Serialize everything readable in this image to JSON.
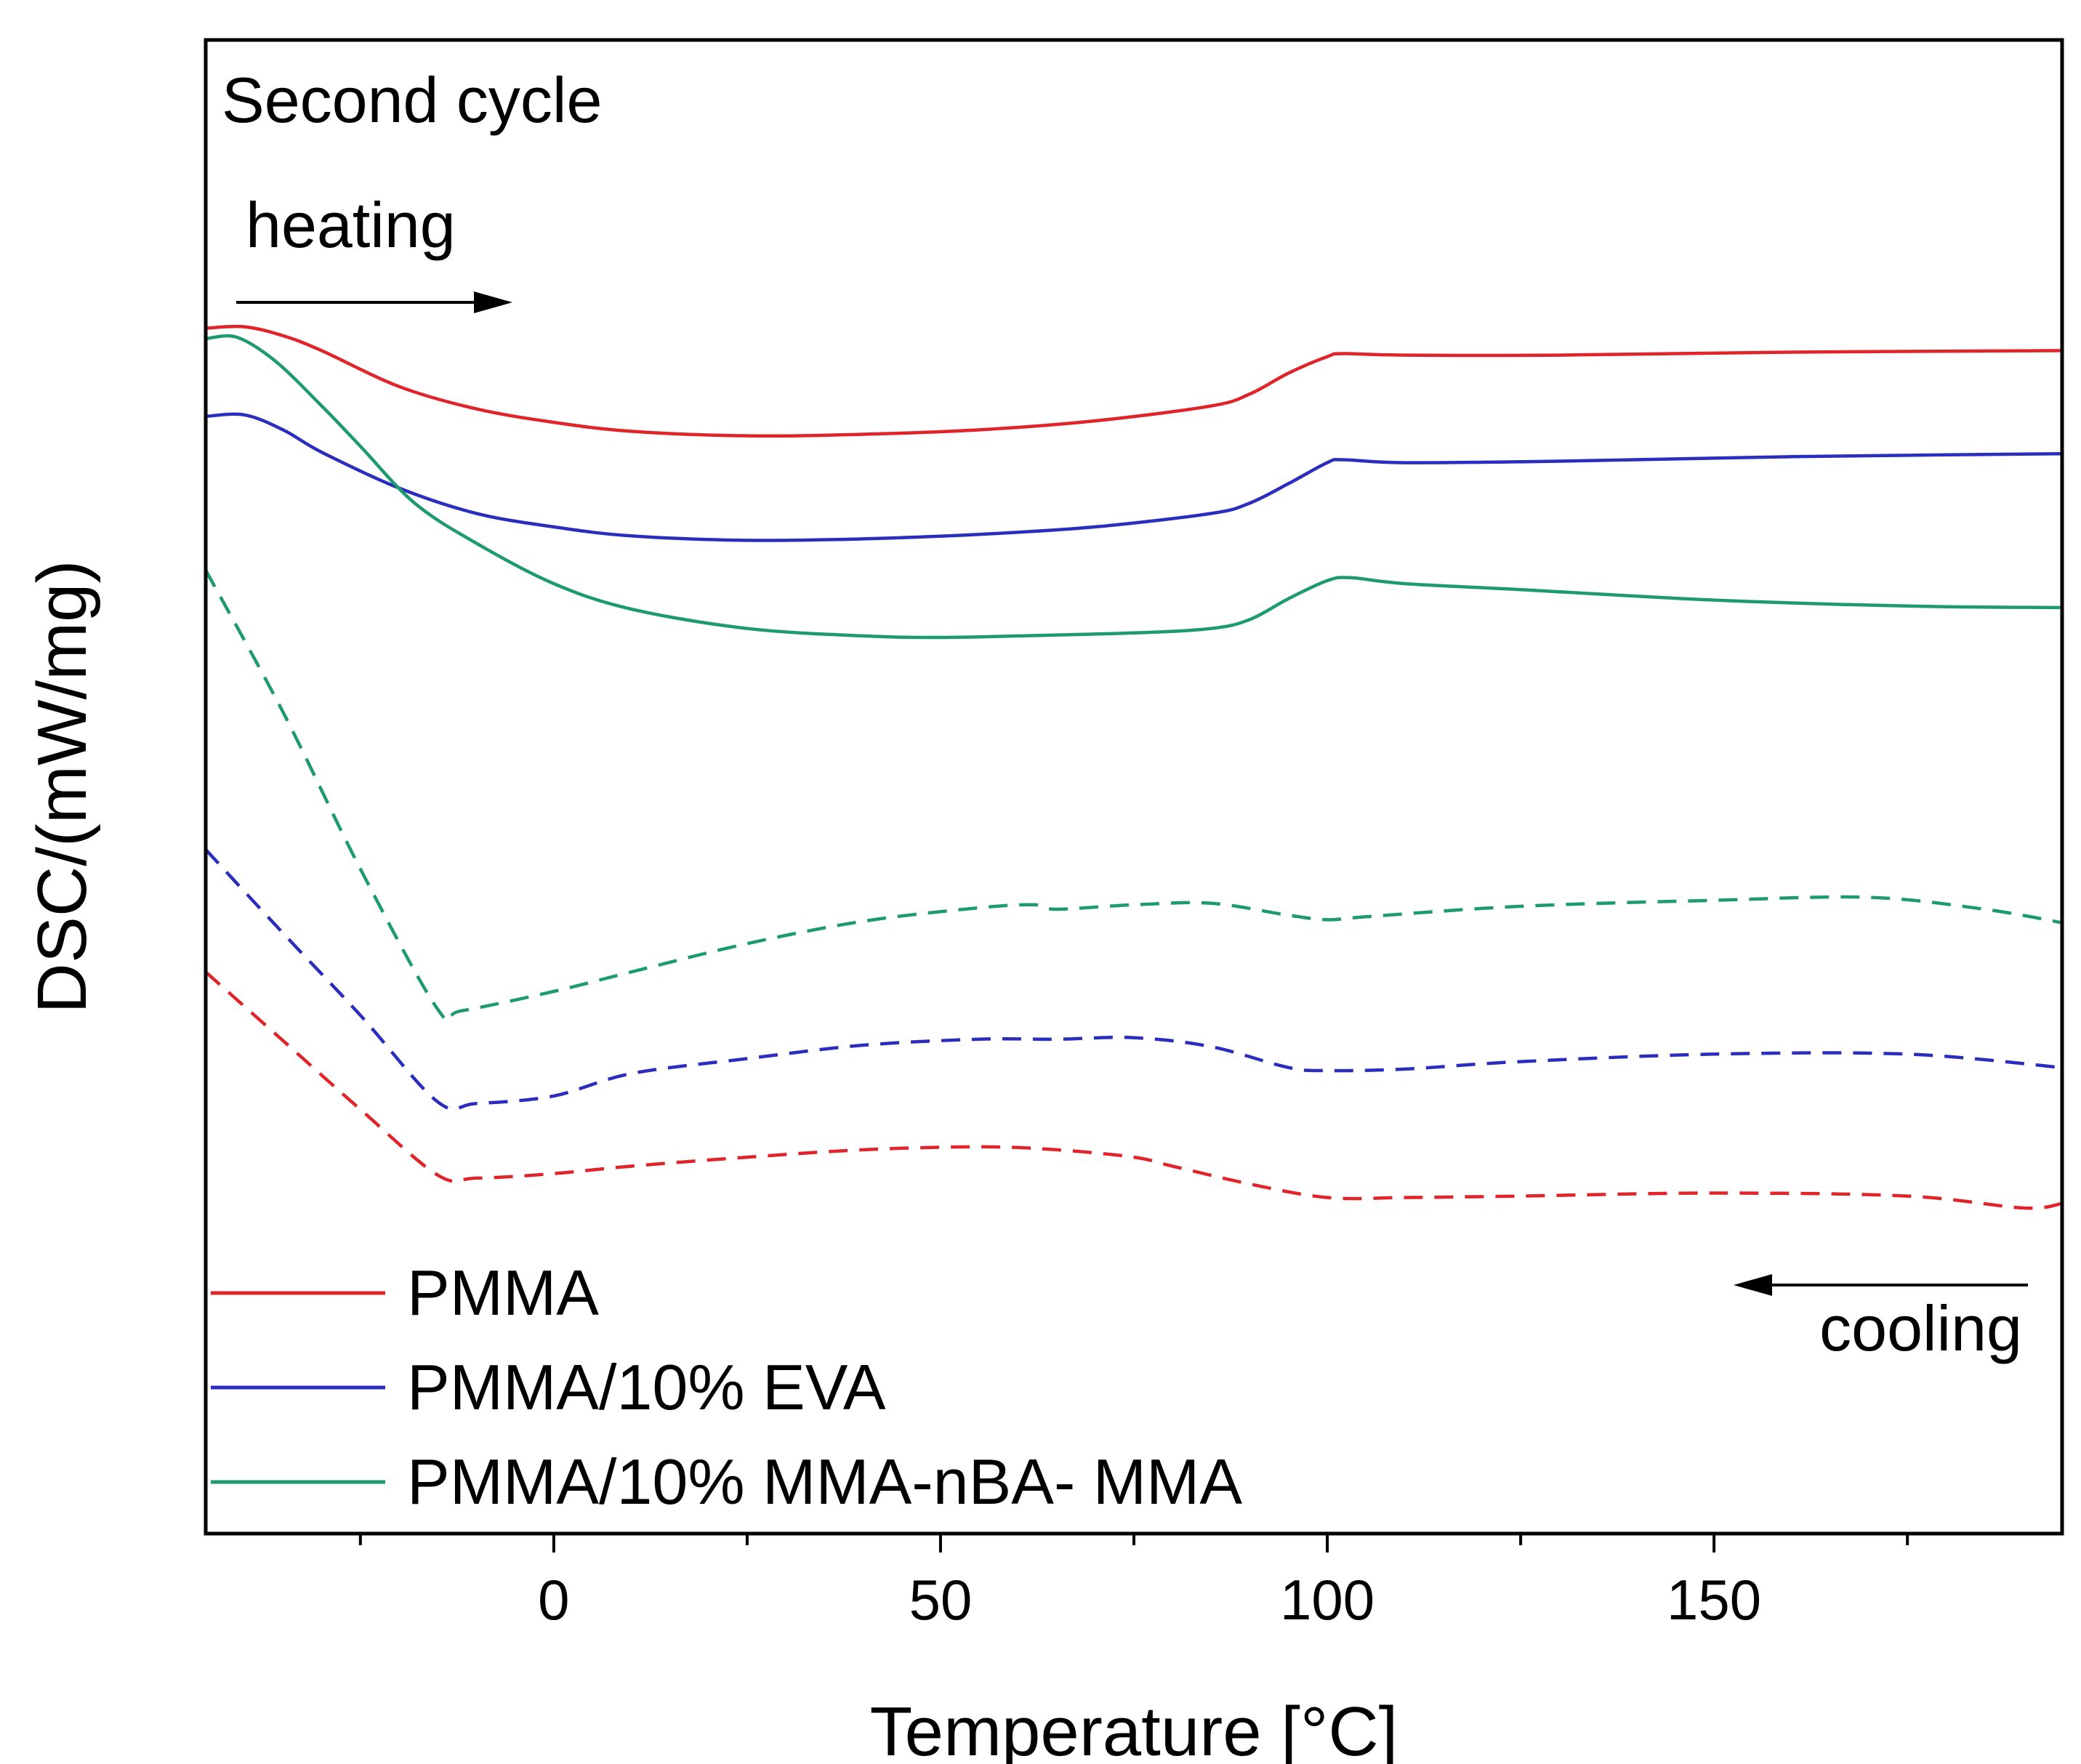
{
  "chart_data": {
    "type": "line",
    "annotations": {
      "panel_label": "Second cycle",
      "heating_label": "heating",
      "cooling_label": "cooling"
    },
    "xlabel": "Temperature [°C]",
    "ylabel": "DSC/(mW/mg)",
    "xlim": [
      -45,
      195
    ],
    "ylim": [
      0,
      100
    ],
    "y_ticks_shown": false,
    "x_ticks": [
      {
        "value": 0,
        "label": "0"
      },
      {
        "value": 50,
        "label": "50"
      },
      {
        "value": 100,
        "label": "100"
      },
      {
        "value": 150,
        "label": "150"
      }
    ],
    "x_minor_ticks": [
      -25,
      25,
      75,
      125,
      175
    ],
    "legend_position": "bottom-left",
    "series": [
      {
        "name": "PMMA",
        "label": "PMMA",
        "color": "#e0252a",
        "style": "solid",
        "segment": "heating",
        "x": [
          -45,
          -40,
          -35,
          -30,
          -20,
          -10,
          0,
          10,
          25,
          40,
          55,
          70,
          85,
          90,
          95,
          100,
          102,
          110,
          130,
          160,
          195
        ],
        "y": [
          80.7,
          80.8,
          80.2,
          79.2,
          76.8,
          75.3,
          74.4,
          73.8,
          73.5,
          73.6,
          73.9,
          74.5,
          75.5,
          76.3,
          77.7,
          78.8,
          79.0,
          78.9,
          78.9,
          79.1,
          79.2
        ]
      },
      {
        "name": "PMMA/10% EVA",
        "label": "PMMA/10% EVA",
        "color": "#2a2dbd",
        "style": "solid",
        "segment": "heating",
        "x": [
          -45,
          -40,
          -35,
          -30,
          -20,
          -10,
          0,
          10,
          25,
          40,
          55,
          70,
          85,
          90,
          95,
          100,
          102,
          110,
          130,
          160,
          195
        ],
        "y": [
          74.8,
          74.9,
          73.9,
          72.4,
          70.0,
          68.3,
          67.4,
          66.8,
          66.5,
          66.6,
          66.9,
          67.4,
          68.3,
          69.0,
          70.3,
          71.7,
          71.9,
          71.7,
          71.8,
          72.1,
          72.3
        ]
      },
      {
        "name": "PMMA/10% MMA-nBA- MMA",
        "label": "PMMA/10% MMA-nBA- MMA",
        "color": "#1e9a70",
        "style": "solid",
        "segment": "heating",
        "x": [
          -45,
          -41,
          -36,
          -30,
          -25,
          -18,
          -10,
          0,
          10,
          25,
          40,
          50,
          60,
          75,
          85,
          90,
          95,
          100,
          103,
          110,
          125,
          150,
          175,
          195
        ],
        "y": [
          80.0,
          80.1,
          78.5,
          75.5,
          72.8,
          69.0,
          66.3,
          63.6,
          61.9,
          60.6,
          60.1,
          60.0,
          60.1,
          60.3,
          60.6,
          61.2,
          62.6,
          63.8,
          64.0,
          63.6,
          63.2,
          62.5,
          62.1,
          62.0
        ]
      },
      {
        "name": "PMMA cooling",
        "color": "#e0252a",
        "style": "dashed",
        "segment": "cooling",
        "x": [
          -45,
          -35,
          -25,
          -15,
          -10,
          0,
          10,
          25,
          40,
          55,
          65,
          75,
          80,
          90,
          100,
          110,
          125,
          150,
          175,
          190,
          195
        ],
        "y": [
          37.6,
          33.0,
          28.4,
          24.0,
          23.8,
          24.1,
          24.6,
          25.2,
          25.7,
          25.9,
          25.7,
          25.2,
          24.6,
          23.4,
          22.5,
          22.5,
          22.6,
          22.8,
          22.6,
          21.8,
          22.1
        ]
      },
      {
        "name": "PMMA/10% EVA cooling",
        "color": "#2a2dbd",
        "style": "dashed",
        "segment": "cooling",
        "x": [
          -45,
          -35,
          -25,
          -15,
          -10,
          0,
          10,
          25,
          40,
          55,
          65,
          75,
          85,
          95,
          100,
          110,
          125,
          150,
          175,
          195
        ],
        "y": [
          45.8,
          40.2,
          34.7,
          28.9,
          28.8,
          29.3,
          30.8,
          31.8,
          32.7,
          33.1,
          33.1,
          33.2,
          32.6,
          31.2,
          31.0,
          31.1,
          31.6,
          32.1,
          32.1,
          31.2
        ]
      },
      {
        "name": "PMMA/10% MMA-nBA- MMA cooling",
        "color": "#1e9a70",
        "style": "dashed",
        "segment": "cooling",
        "x": [
          -45,
          -35,
          -25,
          -15,
          -12,
          0,
          10,
          25,
          40,
          55,
          62,
          65,
          75,
          85,
          95,
          100,
          105,
          125,
          150,
          170,
          185,
          195
        ],
        "y": [
          64.5,
          55.0,
          44.5,
          35.1,
          35.0,
          36.3,
          37.6,
          39.5,
          41.0,
          41.9,
          42.1,
          41.8,
          42.1,
          42.2,
          41.4,
          41.1,
          41.3,
          42.0,
          42.4,
          42.6,
          41.8,
          40.9
        ]
      }
    ]
  }
}
